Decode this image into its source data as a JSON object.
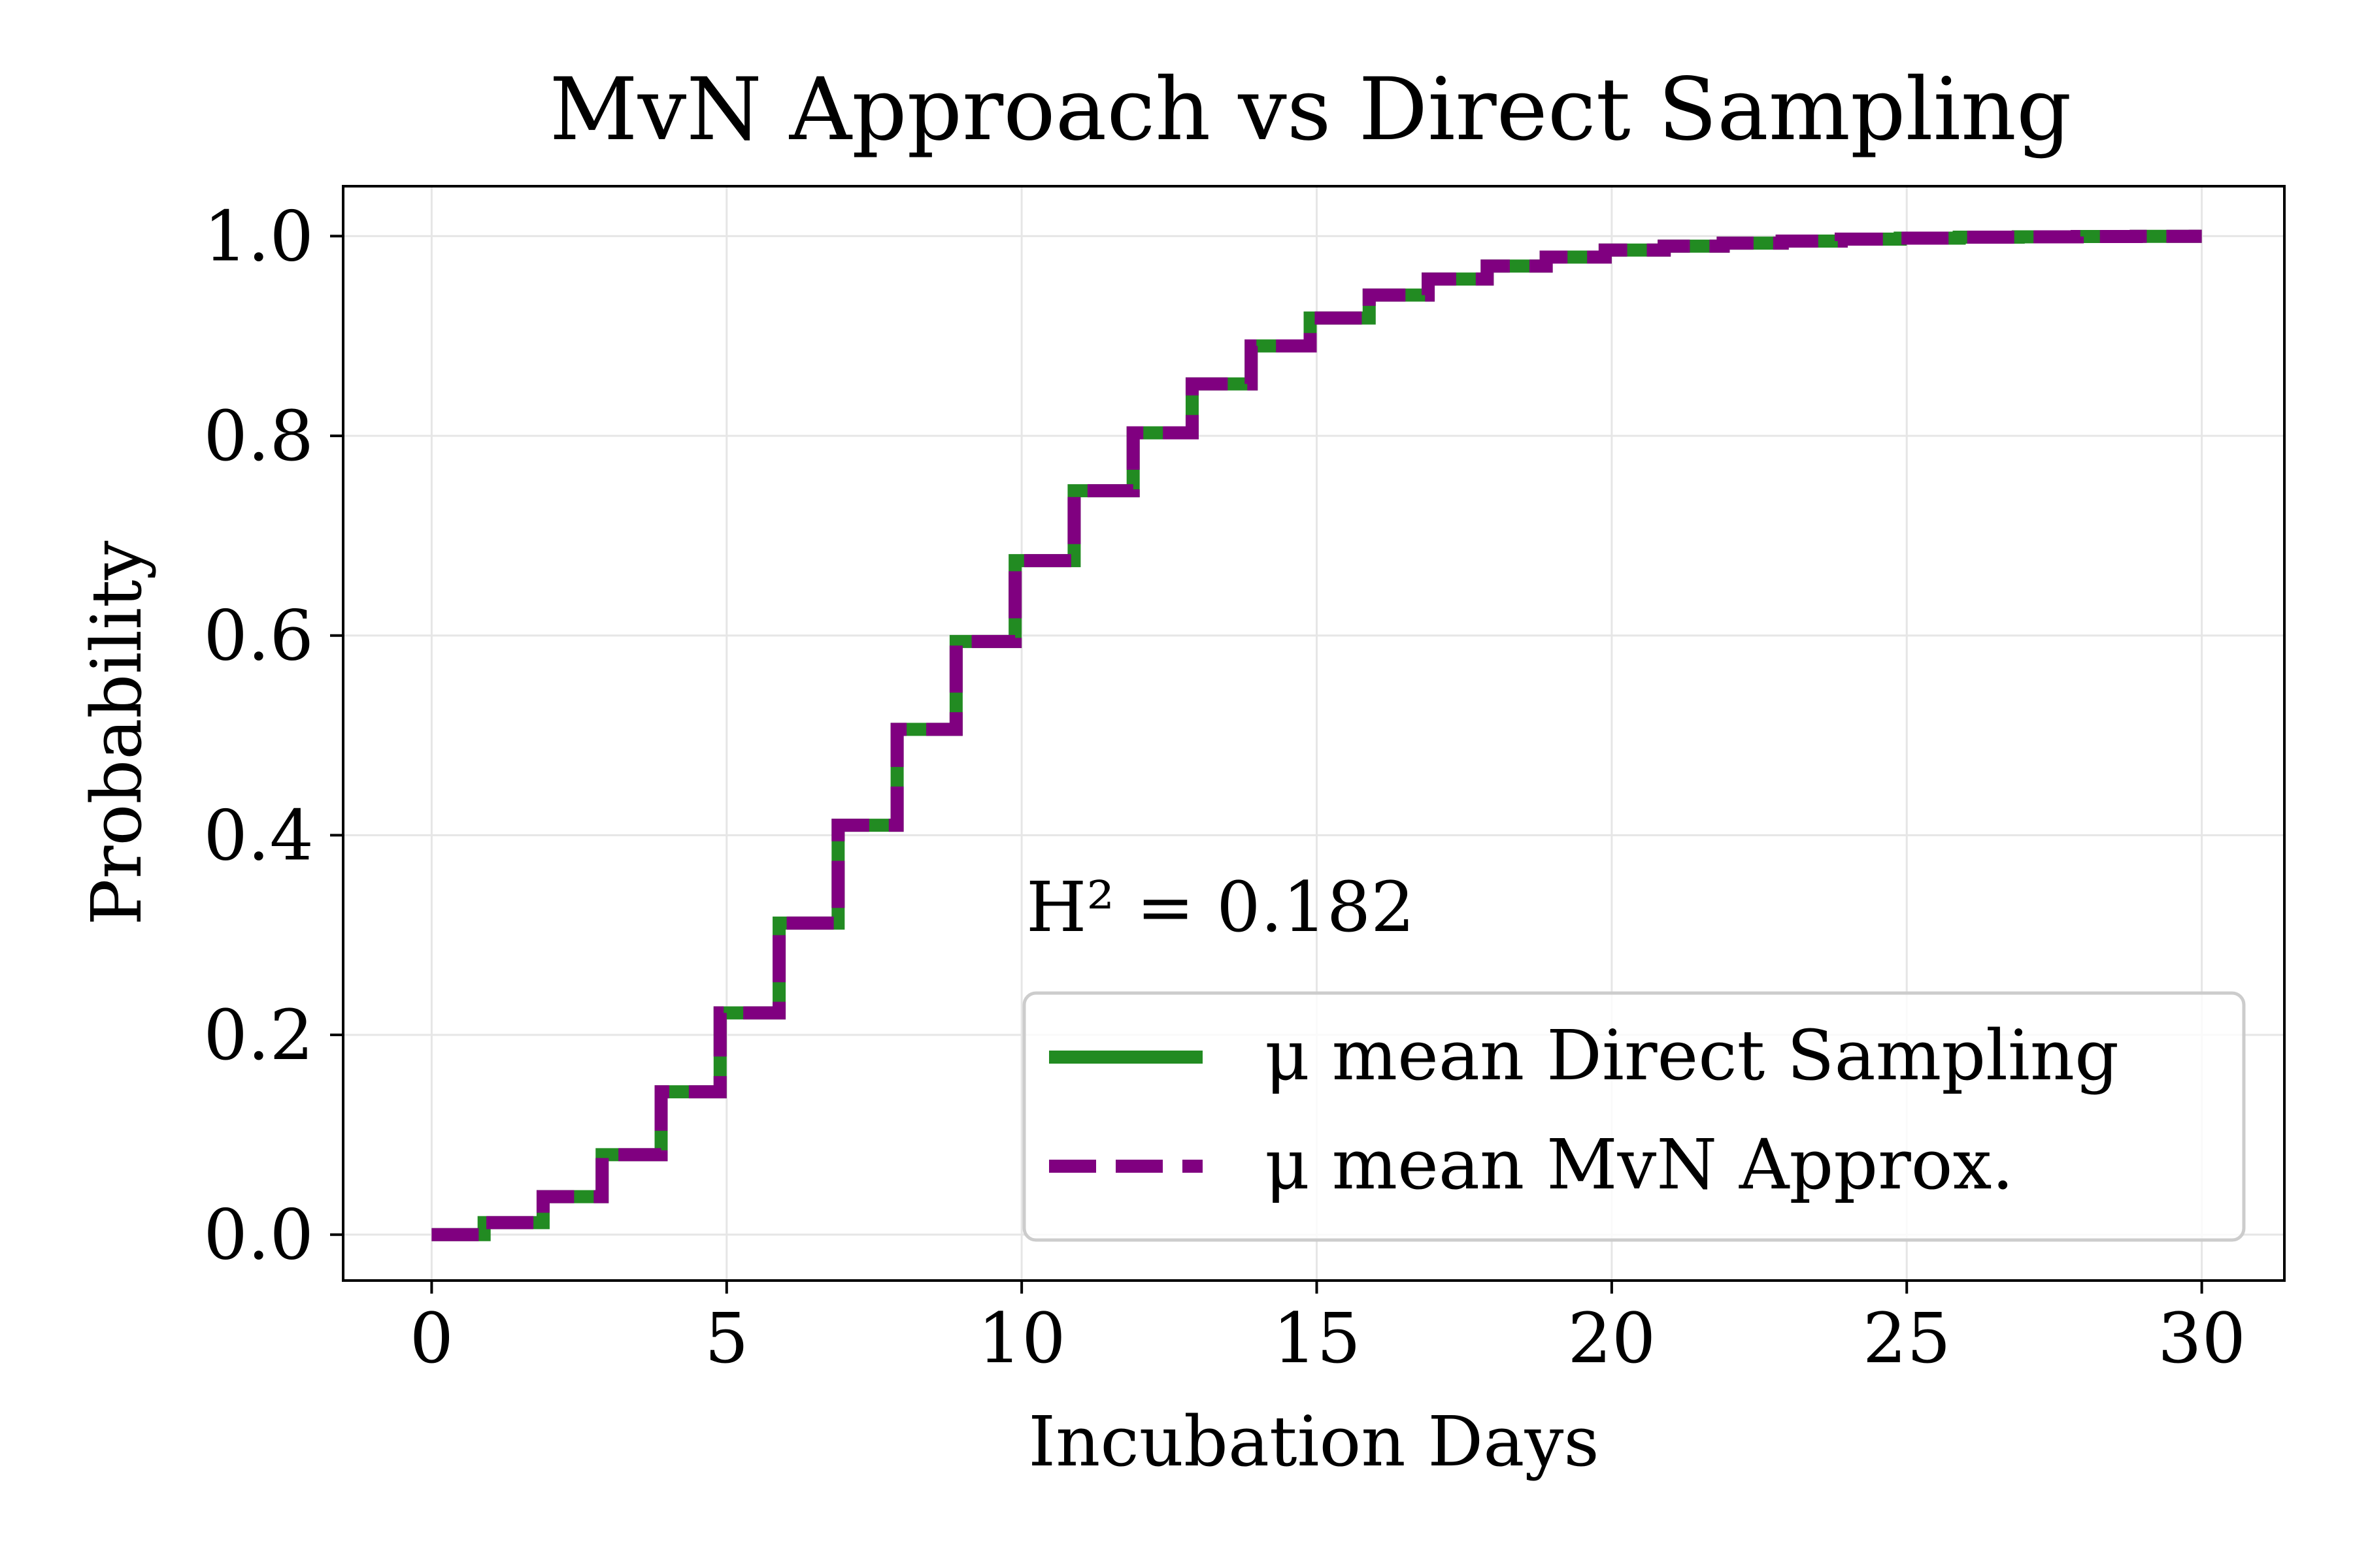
{
  "chart_data": {
    "type": "line",
    "step": true,
    "title": "MvN Approach vs Direct Sampling",
    "xlabel": "Incubation Days",
    "ylabel": "Probability",
    "xlim": [
      -1.5,
      31.4
    ],
    "ylim": [
      -0.046,
      1.05
    ],
    "xticks": [
      0,
      5,
      10,
      15,
      20,
      25,
      30
    ],
    "yticks": [
      0.0,
      0.2,
      0.4,
      0.6,
      0.8,
      1.0
    ],
    "xtick_labels": [
      "0",
      "5",
      "10",
      "15",
      "20",
      "25",
      "30"
    ],
    "ytick_labels": [
      "0.0",
      "0.2",
      "0.4",
      "0.6",
      "0.8",
      "1.0"
    ],
    "grid": true,
    "legend_position": "lower-right",
    "annotation": "H² = 0.182",
    "x": [
      0,
      1,
      2,
      3,
      4,
      5,
      6,
      7,
      8,
      9,
      10,
      11,
      12,
      13,
      14,
      15,
      16,
      17,
      18,
      19,
      20,
      21,
      22,
      23,
      24,
      25,
      26,
      27,
      28,
      29,
      30
    ],
    "series": [
      {
        "name": "μ mean Direct Sampling",
        "color": "#228b22",
        "style": "solid",
        "values": [
          0.0,
          0.012,
          0.038,
          0.08,
          0.143,
          0.222,
          0.312,
          0.41,
          0.506,
          0.594,
          0.675,
          0.745,
          0.803,
          0.852,
          0.89,
          0.918,
          0.941,
          0.957,
          0.97,
          0.979,
          0.986,
          0.99,
          0.993,
          0.995,
          0.997,
          0.998,
          0.999,
          0.9993,
          0.9996,
          0.9998,
          0.9999
        ]
      },
      {
        "name": "μ mean MvN Approx.",
        "color": "#800080",
        "style": "dashed",
        "values": [
          0.0,
          0.012,
          0.038,
          0.08,
          0.143,
          0.222,
          0.312,
          0.41,
          0.506,
          0.594,
          0.675,
          0.745,
          0.803,
          0.852,
          0.89,
          0.918,
          0.941,
          0.957,
          0.97,
          0.979,
          0.986,
          0.99,
          0.993,
          0.995,
          0.997,
          0.998,
          0.999,
          0.9993,
          0.9996,
          0.9998,
          0.9999
        ]
      }
    ]
  }
}
